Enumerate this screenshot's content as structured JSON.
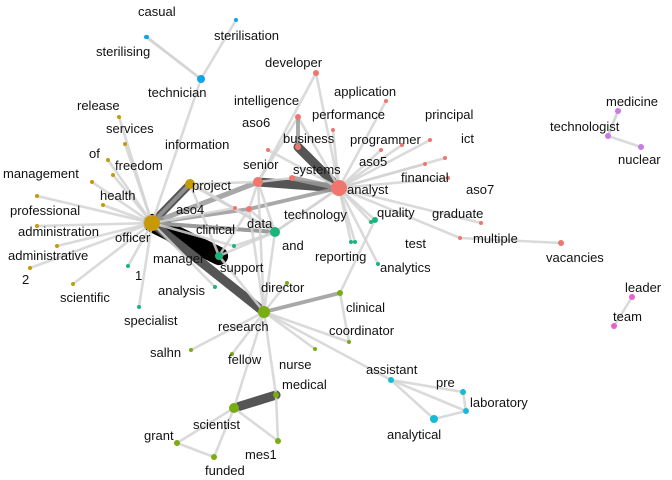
{
  "colors": {
    "red": "#f0766d",
    "gold": "#c69a06",
    "green": "#19b57b",
    "olive": "#78ad14",
    "cyan": "#16bad1",
    "blue": "#0ca5ec",
    "purple": "#c87ae6",
    "pink": "#ec5fd1",
    "edge_light": "#d4d4d4",
    "edge_mid": "#9a9a9a",
    "edge_dark": "#555555",
    "edge_black": "#000000"
  },
  "nodes": [
    {
      "id": "casual",
      "label": "casual",
      "color": "blue",
      "size": 2
    },
    {
      "id": "sterilisation",
      "label": "sterilisation",
      "color": "blue",
      "size": 2
    },
    {
      "id": "sterilising",
      "label": "sterilising",
      "color": "blue",
      "size": 2
    },
    {
      "id": "technician",
      "label": "technician",
      "color": "blue",
      "size": 4
    },
    {
      "id": "developer",
      "label": "developer",
      "color": "red",
      "size": 3
    },
    {
      "id": "application",
      "label": "application",
      "color": "red",
      "size": 2
    },
    {
      "id": "intelligence",
      "label": "intelligence",
      "color": "red",
      "size": 3
    },
    {
      "id": "performance",
      "label": "performance",
      "color": "red",
      "size": 2
    },
    {
      "id": "principal",
      "label": "principal",
      "color": "red",
      "size": 2
    },
    {
      "id": "medicine",
      "label": "medicine",
      "color": "purple",
      "size": 3
    },
    {
      "id": "technologist",
      "label": "technologist",
      "color": "purple",
      "size": 3
    },
    {
      "id": "nuclear",
      "label": "nuclear",
      "color": "purple",
      "size": 3
    },
    {
      "id": "release",
      "label": "release",
      "color": "gold",
      "size": 2
    },
    {
      "id": "services",
      "label": "services",
      "color": "gold",
      "size": 2
    },
    {
      "id": "aso6",
      "label": "aso6",
      "color": "red",
      "size": 2
    },
    {
      "id": "business",
      "label": "business",
      "color": "red",
      "size": 3
    },
    {
      "id": "programmer",
      "label": "programmer",
      "color": "red",
      "size": 2
    },
    {
      "id": "ict",
      "label": "ict",
      "color": "red",
      "size": 2
    },
    {
      "id": "information",
      "label": "information",
      "color": "gold",
      "size": 2
    },
    {
      "id": "of",
      "label": "of",
      "color": "gold",
      "size": 2
    },
    {
      "id": "freedom",
      "label": "freedom",
      "color": "gold",
      "size": 2
    },
    {
      "id": "aso5",
      "label": "aso5",
      "color": "red",
      "size": 2
    },
    {
      "id": "senior",
      "label": "senior",
      "color": "red",
      "size": 5
    },
    {
      "id": "systems",
      "label": "systems",
      "color": "red",
      "size": 3
    },
    {
      "id": "analyst",
      "label": "analyst",
      "color": "red",
      "size": 8
    },
    {
      "id": "financial",
      "label": "financial",
      "color": "red",
      "size": 2
    },
    {
      "id": "management",
      "label": "management",
      "color": "gold",
      "size": 2
    },
    {
      "id": "project",
      "label": "project",
      "color": "gold",
      "size": 5
    },
    {
      "id": "aso7",
      "label": "aso7",
      "color": "red",
      "size": 2
    },
    {
      "id": "health",
      "label": "health",
      "color": "gold",
      "size": 2
    },
    {
      "id": "professional",
      "label": "professional",
      "color": "gold",
      "size": 2
    },
    {
      "id": "aso4",
      "label": "aso4",
      "color": "red",
      "size": 2
    },
    {
      "id": "data",
      "label": "data",
      "color": "red",
      "size": 3
    },
    {
      "id": "technology",
      "label": "technology",
      "color": "green",
      "size": 3
    },
    {
      "id": "quality",
      "label": "quality",
      "color": "green",
      "size": 2
    },
    {
      "id": "graduate",
      "label": "graduate",
      "color": "red",
      "size": 2
    },
    {
      "id": "officer",
      "label": "officer",
      "color": "gold",
      "size": 8
    },
    {
      "id": "clinical_a",
      "label": "clinical",
      "color": "green",
      "size": 3
    },
    {
      "id": "administration",
      "label": "administration",
      "color": "gold",
      "size": 2
    },
    {
      "id": "and",
      "label": "and",
      "color": "green",
      "size": 5
    },
    {
      "id": "multiple",
      "label": "multiple",
      "color": "red",
      "size": 2
    },
    {
      "id": "test",
      "label": "test",
      "color": "green",
      "size": 2
    },
    {
      "id": "administrative",
      "label": "administrative",
      "color": "gold",
      "size": 2
    },
    {
      "id": "manager",
      "label": "manager",
      "color": "green",
      "size": 4
    },
    {
      "id": "reporting",
      "label": "reporting",
      "color": "green",
      "size": 2
    },
    {
      "id": "vacancies",
      "label": "vacancies",
      "color": "red",
      "size": 3
    },
    {
      "id": "support",
      "label": "support",
      "color": "green",
      "size": 2
    },
    {
      "id": "analytics",
      "label": "analytics",
      "color": "green",
      "size": 2
    },
    {
      "id": "one",
      "label": "1",
      "color": "green",
      "size": 2
    },
    {
      "id": "two",
      "label": "2",
      "color": "gold",
      "size": 2
    },
    {
      "id": "scientific",
      "label": "scientific",
      "color": "gold",
      "size": 2
    },
    {
      "id": "analysis",
      "label": "analysis",
      "color": "green",
      "size": 2
    },
    {
      "id": "director",
      "label": "director",
      "color": "olive",
      "size": 2
    },
    {
      "id": "leader",
      "label": "leader",
      "color": "pink",
      "size": 3
    },
    {
      "id": "clinical_b",
      "label": "clinical",
      "color": "olive",
      "size": 3
    },
    {
      "id": "specialist",
      "label": "specialist",
      "color": "green",
      "size": 2
    },
    {
      "id": "team",
      "label": "team",
      "color": "pink",
      "size": 3
    },
    {
      "id": "research",
      "label": "research",
      "color": "olive",
      "size": 6
    },
    {
      "id": "coordinator",
      "label": "coordinator",
      "color": "olive",
      "size": 2
    },
    {
      "id": "salhn",
      "label": "salhn",
      "color": "olive",
      "size": 2
    },
    {
      "id": "fellow",
      "label": "fellow",
      "color": "olive",
      "size": 2
    },
    {
      "id": "nurse",
      "label": "nurse",
      "color": "olive",
      "size": 2
    },
    {
      "id": "assistant",
      "label": "assistant",
      "color": "cyan",
      "size": 3
    },
    {
      "id": "pre",
      "label": "pre",
      "color": "cyan",
      "size": 3
    },
    {
      "id": "medical",
      "label": "medical",
      "color": "olive",
      "size": 3
    },
    {
      "id": "laboratory",
      "label": "laboratory",
      "color": "cyan",
      "size": 3
    },
    {
      "id": "scientist",
      "label": "scientist",
      "color": "olive",
      "size": 5
    },
    {
      "id": "analytical",
      "label": "analytical",
      "color": "cyan",
      "size": 4
    },
    {
      "id": "grant",
      "label": "grant",
      "color": "olive",
      "size": 3
    },
    {
      "id": "mes1",
      "label": "mes1",
      "color": "olive",
      "size": 3
    },
    {
      "id": "funded",
      "label": "funded",
      "color": "olive",
      "size": 3
    }
  ],
  "edges": [
    [
      "officer",
      "manager",
      14
    ],
    [
      "officer",
      "project",
      6
    ],
    [
      "officer",
      "research",
      7
    ],
    [
      "senior",
      "analyst",
      7
    ],
    [
      "business",
      "analyst",
      7
    ],
    [
      "systems",
      "analyst",
      4
    ],
    [
      "scientist",
      "medical",
      7
    ],
    [
      "officer",
      "senior",
      4
    ],
    [
      "officer",
      "data",
      3
    ],
    [
      "officer",
      "technology",
      3
    ],
    [
      "officer",
      "and",
      3
    ],
    [
      "officer",
      "information",
      3
    ],
    [
      "officer",
      "health",
      2
    ],
    [
      "officer",
      "freedom",
      2
    ],
    [
      "officer",
      "of",
      2
    ],
    [
      "officer",
      "services",
      2
    ],
    [
      "officer",
      "release",
      2
    ],
    [
      "officer",
      "management",
      2
    ],
    [
      "officer",
      "professional",
      2
    ],
    [
      "officer",
      "administration",
      2
    ],
    [
      "officer",
      "administrative",
      2
    ],
    [
      "officer",
      "two",
      2
    ],
    [
      "officer",
      "one",
      2
    ],
    [
      "officer",
      "scientific",
      2
    ],
    [
      "officer",
      "technician",
      2
    ],
    [
      "officer",
      "support",
      2
    ],
    [
      "officer",
      "aso4",
      2
    ],
    [
      "officer",
      "analysis",
      2
    ],
    [
      "officer",
      "specialist",
      2
    ],
    [
      "analyst",
      "data",
      3
    ],
    [
      "analyst",
      "financial",
      2
    ],
    [
      "analyst",
      "aso5",
      2
    ],
    [
      "analyst",
      "aso7",
      2
    ],
    [
      "analyst",
      "programmer",
      2
    ],
    [
      "analyst",
      "performance",
      2
    ],
    [
      "analyst",
      "application",
      2
    ],
    [
      "analyst",
      "principal",
      2
    ],
    [
      "analyst",
      "ict",
      2
    ],
    [
      "analyst",
      "graduate",
      2
    ],
    [
      "analyst",
      "quality",
      2
    ],
    [
      "analyst",
      "test",
      2
    ],
    [
      "analyst",
      "reporting",
      2
    ],
    [
      "analyst",
      "clinical_a",
      2
    ],
    [
      "analyst",
      "analytics",
      2
    ],
    [
      "analyst",
      "technology",
      2
    ],
    [
      "analyst",
      "and",
      2
    ],
    [
      "analyst",
      "developer",
      2
    ],
    [
      "analyst",
      "intelligence",
      2
    ],
    [
      "analyst",
      "aso6",
      2
    ],
    [
      "analyst",
      "multiple",
      2
    ],
    [
      "senior",
      "developer",
      2
    ],
    [
      "senior",
      "intelligence",
      2
    ],
    [
      "senior",
      "systems",
      2
    ],
    [
      "senior",
      "research",
      2
    ],
    [
      "senior",
      "project",
      2
    ],
    [
      "senior",
      "data",
      2
    ],
    [
      "business",
      "intelligence",
      3
    ],
    [
      "multiple",
      "vacancies",
      2
    ],
    [
      "technician",
      "casual",
      2
    ],
    [
      "technician",
      "sterilisation",
      2
    ],
    [
      "technician",
      "sterilising",
      2
    ],
    [
      "technologist",
      "medicine",
      2
    ],
    [
      "technologist",
      "nuclear",
      2
    ],
    [
      "technologist",
      "medicine",
      2
    ],
    [
      "leader",
      "team",
      2
    ],
    [
      "research",
      "director",
      2
    ],
    [
      "research",
      "clinical_b",
      3
    ],
    [
      "research",
      "coordinator",
      2
    ],
    [
      "research",
      "salhn",
      2
    ],
    [
      "research",
      "fellow",
      2
    ],
    [
      "research",
      "nurse",
      2
    ],
    [
      "research",
      "assistant",
      2
    ],
    [
      "research",
      "medical",
      2
    ],
    [
      "research",
      "scientist",
      2
    ],
    [
      "research",
      "data",
      2
    ],
    [
      "research",
      "and",
      2
    ],
    [
      "research",
      "manager",
      2
    ],
    [
      "assistant",
      "pre",
      2
    ],
    [
      "assistant",
      "laboratory",
      2
    ],
    [
      "assistant",
      "analytical",
      2
    ],
    [
      "pre",
      "laboratory",
      2
    ],
    [
      "laboratory",
      "analytical",
      2
    ],
    [
      "scientist",
      "grant",
      2
    ],
    [
      "scientist",
      "funded",
      2
    ],
    [
      "scientist",
      "mes1",
      2
    ],
    [
      "medical",
      "mes1",
      2
    ],
    [
      "grant",
      "funded",
      2
    ],
    [
      "manager",
      "data",
      2
    ],
    [
      "manager",
      "project",
      2
    ],
    [
      "manager",
      "and",
      2
    ],
    [
      "technology",
      "and",
      2
    ],
    [
      "technology",
      "information",
      2
    ],
    [
      "technology",
      "senior",
      2
    ],
    [
      "and",
      "project",
      2
    ],
    [
      "and",
      "support",
      2
    ],
    [
      "project",
      "information",
      2
    ],
    [
      "data",
      "and",
      2
    ],
    [
      "clinical_a",
      "clinical_b",
      2
    ],
    [
      "clinical_b",
      "coordinator",
      2
    ]
  ]
}
